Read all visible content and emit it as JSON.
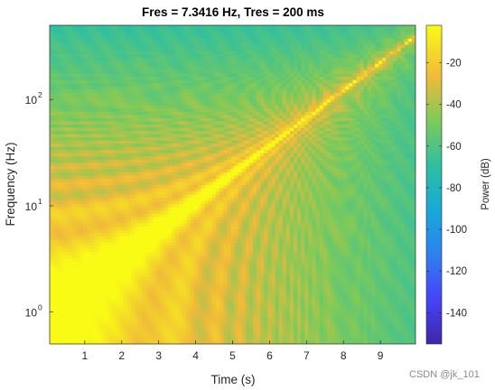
{
  "chart_data": {
    "type": "heatmap",
    "title": "Fres = 7.3416 Hz, Tres = 200 ms",
    "xlabel": "Time (s)",
    "ylabel": "Frequency (Hz)",
    "xlim": [
      0.05,
      9.95
    ],
    "ylim": [
      0.5,
      500
    ],
    "yscale": "log",
    "xticks": [
      1,
      2,
      3,
      4,
      5,
      6,
      7,
      8,
      9
    ],
    "xtick_labels": [
      "1",
      "2",
      "3",
      "4",
      "5",
      "6",
      "7",
      "8",
      "9"
    ],
    "yticks": [
      1,
      10,
      100
    ],
    "ytick_labels": [
      "10",
      "10",
      "10"
    ],
    "ytick_exponents": [
      "0",
      "1",
      "2"
    ],
    "signal": "exponential chirp, ~1 Hz at t=0 rising to ~400 Hz at t=9.95 s",
    "colorbar": {
      "label": "Power (dB)",
      "colormap": "parula",
      "clim": [
        -155,
        -2
      ],
      "ticks": [
        -140,
        -120,
        -100,
        -80,
        -60,
        -40,
        -20
      ],
      "tick_labels": [
        "-140",
        "-120",
        "-100",
        "-80",
        "-60",
        "-40",
        "-20"
      ]
    }
  },
  "watermark": "CSDN @jk_101"
}
